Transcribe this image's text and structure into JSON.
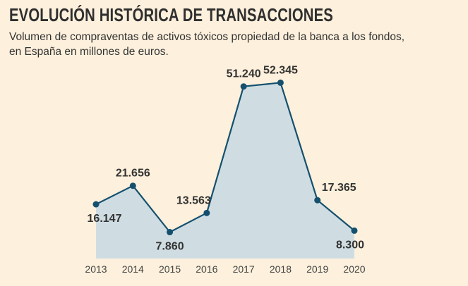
{
  "title": "EVOLUCIÓN HISTÓRICA DE TRANSACCIONES",
  "subtitle_lines": [
    "Volumen de compraventas de activos tóxicos propiedad de la banca a los fondos,",
    "en España en millones de euros."
  ],
  "colors": {
    "background": "#fdf0dc",
    "area": "#cfdde3",
    "line": "#14506e",
    "text": "#333333"
  },
  "chart_data": {
    "type": "area",
    "title": "EVOLUCIÓN HISTÓRICA DE TRANSACCIONES",
    "subtitle": "Volumen de compraventas de activos tóxicos propiedad de la banca a los fondos, en España en millones de euros.",
    "categories": [
      "2013",
      "2014",
      "2015",
      "2016",
      "2017",
      "2018",
      "2019",
      "2020"
    ],
    "values": [
      16147,
      21656,
      7860,
      13563,
      51240,
      52345,
      17365,
      8300
    ],
    "value_labels": [
      "16.147",
      "21.656",
      "7.860",
      "13.563",
      "51.240",
      "52.345",
      "17.365",
      "8.300"
    ],
    "label_positions": [
      "below",
      "above",
      "below",
      "above",
      "above",
      "above",
      "above",
      "below"
    ],
    "xlabel": "",
    "ylabel": "",
    "ylim": [
      0,
      56000
    ],
    "grid": false,
    "legend": "none"
  }
}
